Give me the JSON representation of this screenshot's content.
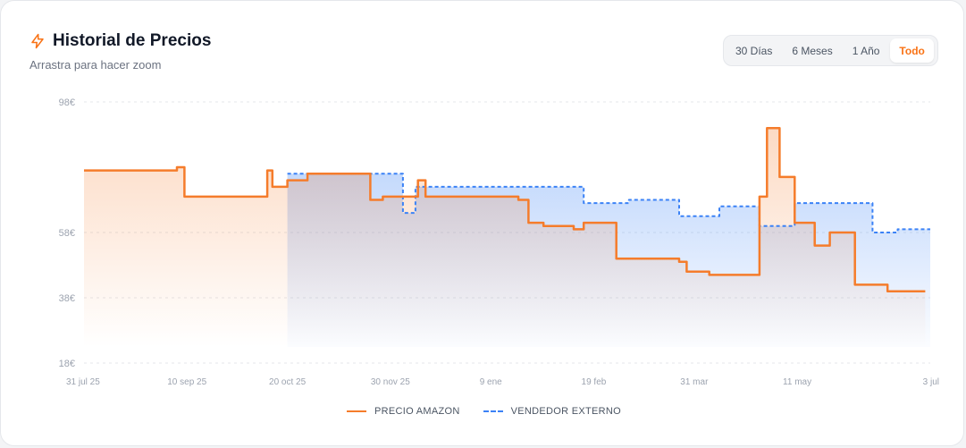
{
  "header": {
    "title": "Historial de Precios",
    "subtitle": "Arrastra para hacer zoom",
    "icon": "lightning-icon"
  },
  "ranges": [
    {
      "label": "30 Días",
      "active": false
    },
    {
      "label": "6 Meses",
      "active": false
    },
    {
      "label": "1 Año",
      "active": false
    },
    {
      "label": "Todo",
      "active": true
    }
  ],
  "colors": {
    "amazon": "#f57c2b",
    "external": "#3b82f6",
    "accent": "#f97316"
  },
  "chart_data": {
    "type": "line",
    "title": "",
    "xlabel": "",
    "ylabel": "",
    "ylim": [
      18,
      98
    ],
    "yticks": [
      {
        "value": 98,
        "label": "98€"
      },
      {
        "value": 58,
        "label": "58€"
      },
      {
        "value": 38,
        "label": "38€"
      },
      {
        "value": 18,
        "label": "18€"
      }
    ],
    "xticks": [
      {
        "date": "2025-07-31",
        "label": "31 jul 25"
      },
      {
        "date": "2025-09-10",
        "label": "10 sep 25"
      },
      {
        "date": "2025-10-20",
        "label": "20 oct 25"
      },
      {
        "date": "2025-11-30",
        "label": "30 nov 25"
      },
      {
        "date": "2026-01-09",
        "label": "9 ene"
      },
      {
        "date": "2026-02-19",
        "label": "19 feb"
      },
      {
        "date": "2026-03-31",
        "label": "31 mar"
      },
      {
        "date": "2026-05-11",
        "label": "11 may"
      },
      {
        "date": "2026-07-03",
        "label": "3 jul"
      }
    ],
    "grid": true,
    "legend_position": "bottom",
    "series": [
      {
        "name": "PRECIO AMAZON",
        "style": "solid",
        "points": [
          [
            "2025-07-31",
            77
          ],
          [
            "2025-09-06",
            77
          ],
          [
            "2025-09-06",
            78
          ],
          [
            "2025-09-09",
            78
          ],
          [
            "2025-09-09",
            69
          ],
          [
            "2025-10-12",
            69
          ],
          [
            "2025-10-12",
            77
          ],
          [
            "2025-10-14",
            77
          ],
          [
            "2025-10-14",
            72
          ],
          [
            "2025-10-20",
            72
          ],
          [
            "2025-10-20",
            74
          ],
          [
            "2025-10-28",
            74
          ],
          [
            "2025-10-28",
            76
          ],
          [
            "2025-11-22",
            76
          ],
          [
            "2025-11-22",
            68
          ],
          [
            "2025-11-27",
            68
          ],
          [
            "2025-11-27",
            69
          ],
          [
            "2025-12-11",
            69
          ],
          [
            "2025-12-11",
            74
          ],
          [
            "2025-12-14",
            74
          ],
          [
            "2025-12-14",
            69
          ],
          [
            "2026-01-20",
            69
          ],
          [
            "2026-01-20",
            68
          ],
          [
            "2026-01-24",
            68
          ],
          [
            "2026-01-24",
            61
          ],
          [
            "2026-01-30",
            61
          ],
          [
            "2026-01-30",
            60
          ],
          [
            "2026-02-11",
            60
          ],
          [
            "2026-02-11",
            59
          ],
          [
            "2026-02-15",
            59
          ],
          [
            "2026-02-15",
            61
          ],
          [
            "2026-02-28",
            61
          ],
          [
            "2026-02-28",
            50
          ],
          [
            "2026-03-25",
            50
          ],
          [
            "2026-03-25",
            49
          ],
          [
            "2026-03-28",
            49
          ],
          [
            "2026-03-28",
            46
          ],
          [
            "2026-04-06",
            46
          ],
          [
            "2026-04-06",
            45
          ],
          [
            "2026-04-26",
            45
          ],
          [
            "2026-04-26",
            69
          ],
          [
            "2026-04-29",
            69
          ],
          [
            "2026-04-29",
            90
          ],
          [
            "2026-05-04",
            90
          ],
          [
            "2026-05-04",
            75
          ],
          [
            "2026-05-10",
            75
          ],
          [
            "2026-05-10",
            61
          ],
          [
            "2026-05-18",
            61
          ],
          [
            "2026-05-18",
            54
          ],
          [
            "2026-05-24",
            54
          ],
          [
            "2026-05-24",
            58
          ],
          [
            "2026-06-03",
            58
          ],
          [
            "2026-06-03",
            42
          ],
          [
            "2026-06-16",
            42
          ],
          [
            "2026-06-16",
            40
          ],
          [
            "2026-07-01",
            40
          ]
        ]
      },
      {
        "name": "VENDEDOR EXTERNO",
        "style": "dashed",
        "points": [
          [
            "2025-10-20",
            76
          ],
          [
            "2025-12-05",
            76
          ],
          [
            "2025-12-05",
            64
          ],
          [
            "2025-12-10",
            64
          ],
          [
            "2025-12-10",
            72
          ],
          [
            "2026-01-20",
            72
          ],
          [
            "2026-01-20",
            72
          ],
          [
            "2026-02-15",
            72
          ],
          [
            "2026-02-15",
            67
          ],
          [
            "2026-03-05",
            67
          ],
          [
            "2026-03-05",
            68
          ],
          [
            "2026-03-25",
            68
          ],
          [
            "2026-03-25",
            63
          ],
          [
            "2026-04-10",
            63
          ],
          [
            "2026-04-10",
            66
          ],
          [
            "2026-04-26",
            66
          ],
          [
            "2026-04-26",
            60
          ],
          [
            "2026-05-10",
            60
          ],
          [
            "2026-05-10",
            67
          ],
          [
            "2026-06-10",
            67
          ],
          [
            "2026-06-10",
            58
          ],
          [
            "2026-06-20",
            58
          ],
          [
            "2026-06-20",
            59
          ],
          [
            "2026-07-03",
            59
          ]
        ]
      }
    ]
  }
}
